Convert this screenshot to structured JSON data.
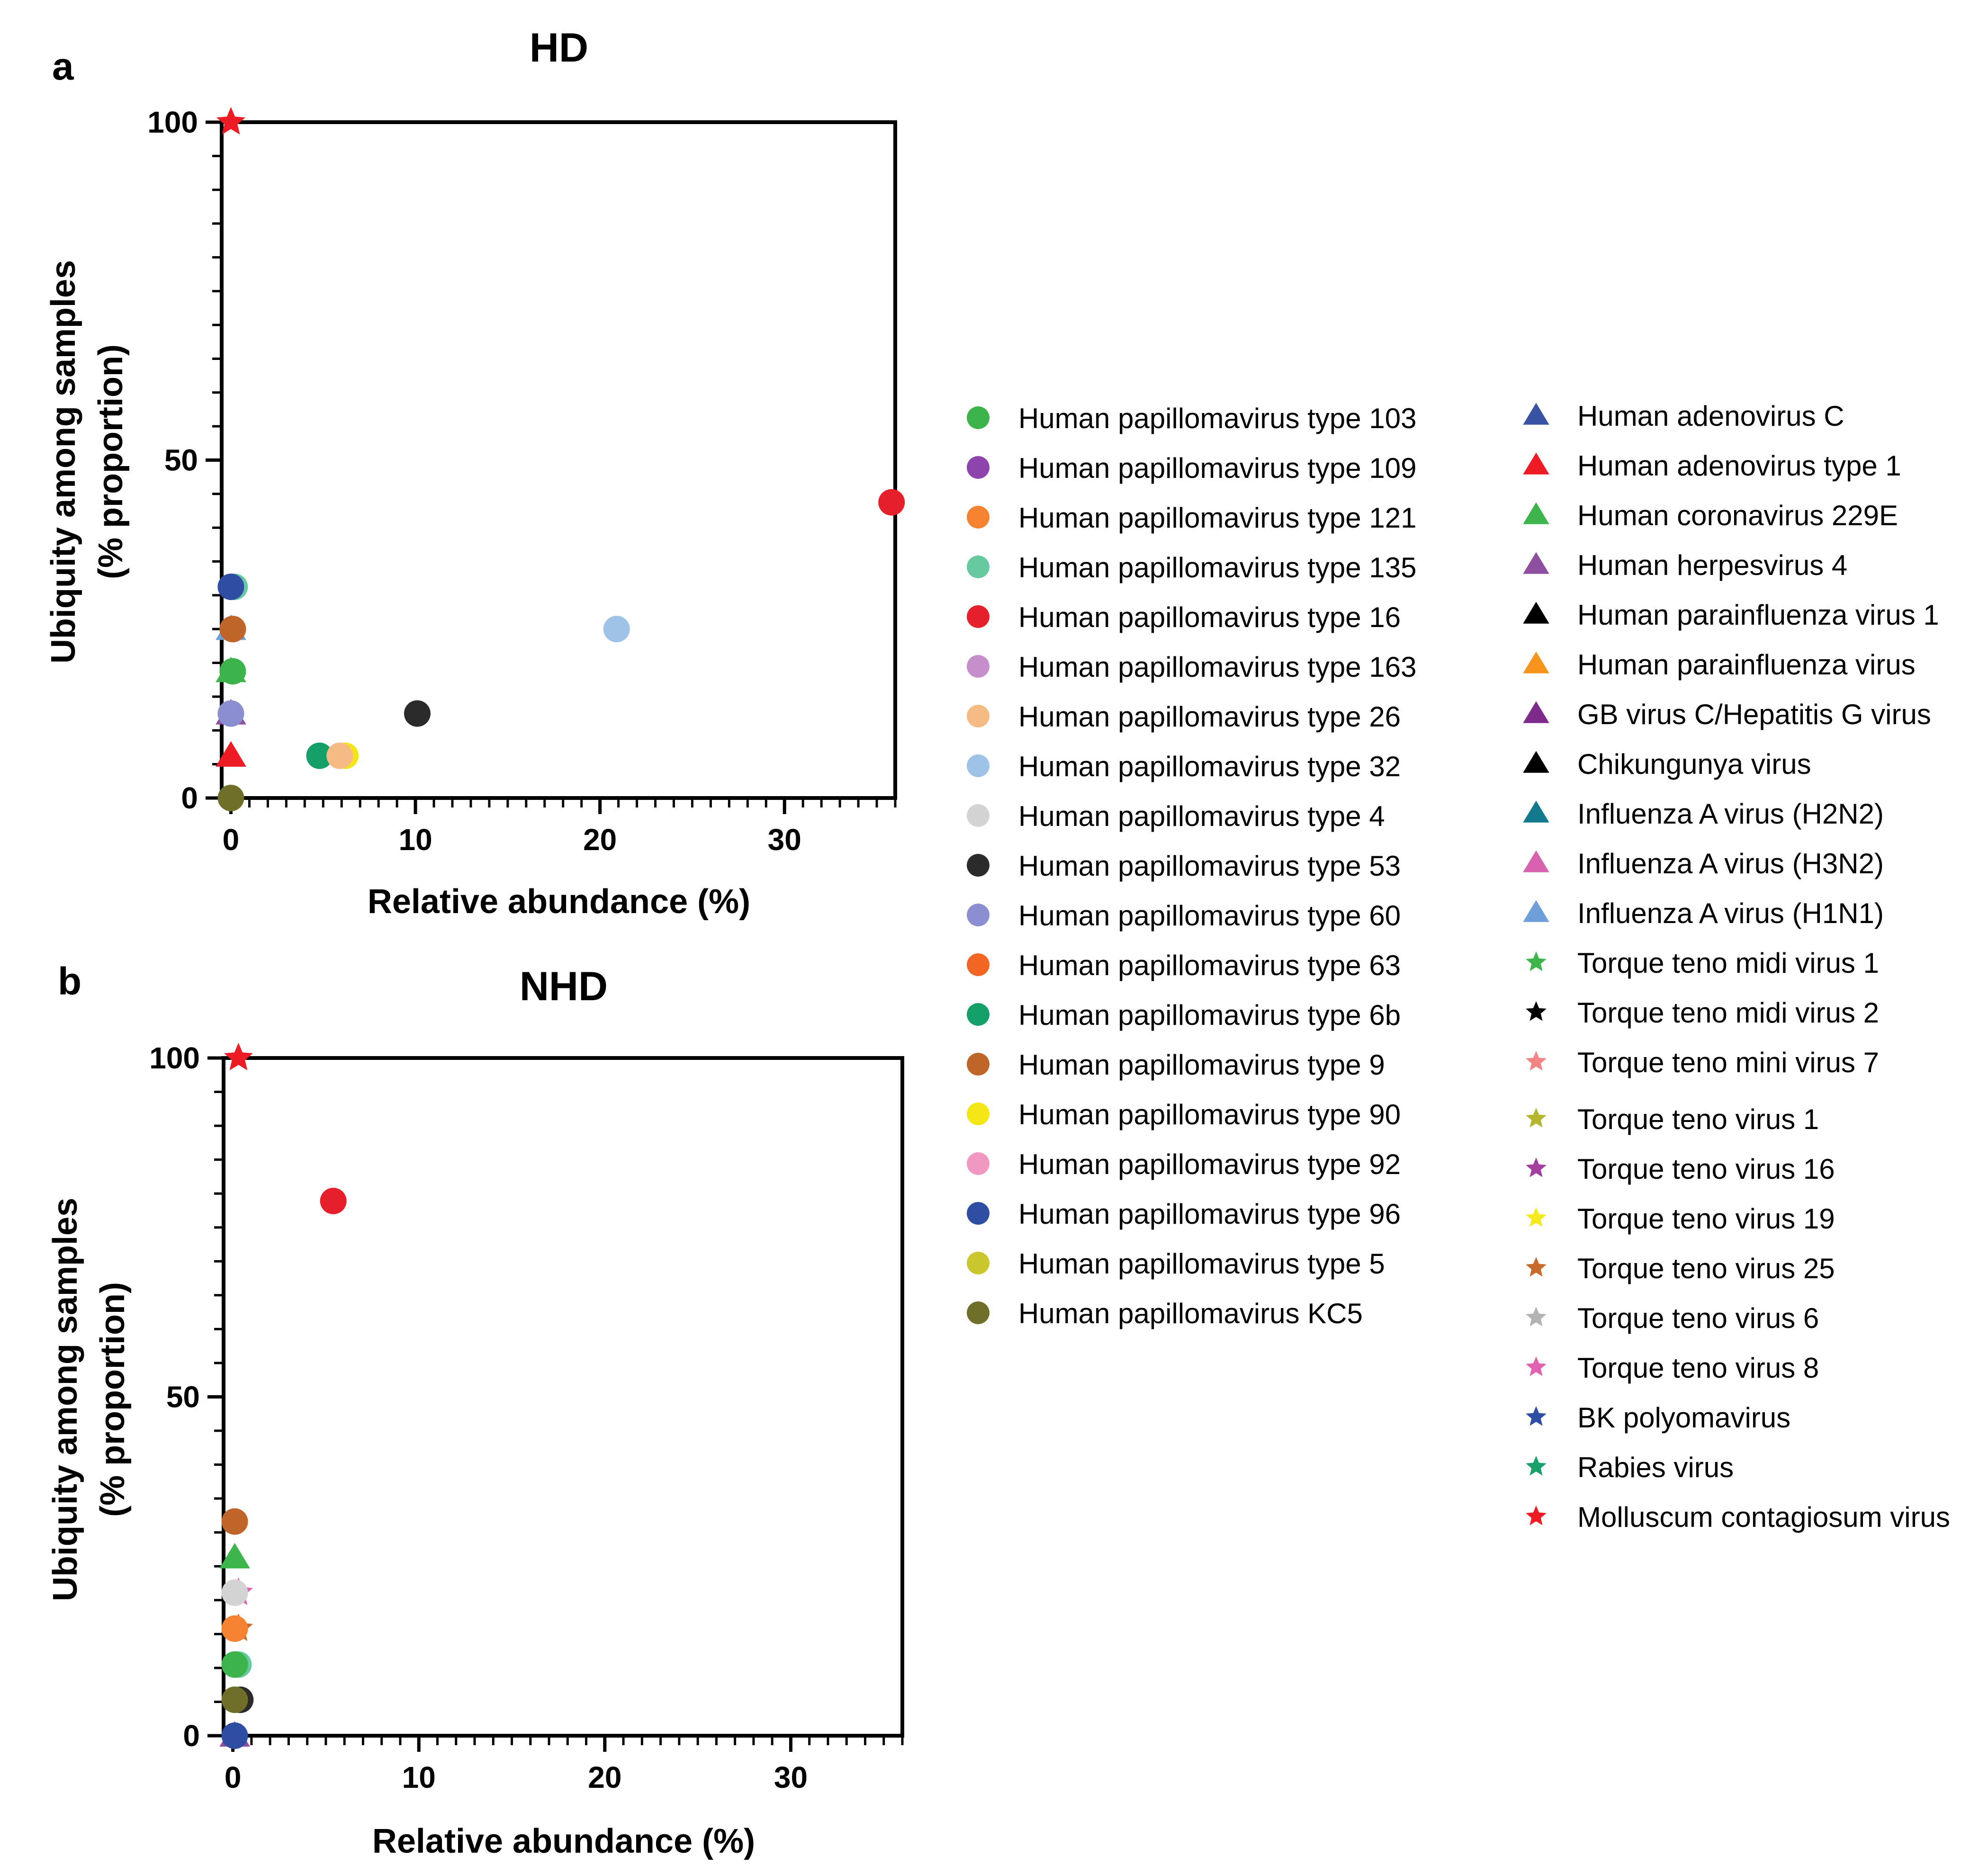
{
  "chart_data": [
    {
      "type": "scatter",
      "panel": "a",
      "title": "HD",
      "xlabel": "Relative abundance (%)",
      "ylabel": [
        "Ubiquity among samples",
        "(% proportion)"
      ],
      "xlim": [
        -0.5,
        36
      ],
      "ylim": [
        0,
        100
      ],
      "xticks": [
        0,
        10,
        20,
        30
      ],
      "yticks": [
        0,
        50,
        100
      ],
      "points": [
        {
          "series": "Human adenovirus C",
          "x": 0.0,
          "y": 6.25
        },
        {
          "series": "Influenza A virus (H1N1)",
          "x": 0.0,
          "y": 25
        },
        {
          "series": "Human coronavirus 229E",
          "x": 0.0,
          "y": 18.75
        },
        {
          "series": "Human herpesvirus 4",
          "x": 0.0,
          "y": 12.5
        },
        {
          "series": "Human papillomavirus type 163",
          "x": 0.1,
          "y": 25
        },
        {
          "series": "Human papillomavirus type 135",
          "x": 0.2,
          "y": 31.25
        },
        {
          "series": "Human papillomavirus type 96",
          "x": 0.0,
          "y": 31.25
        },
        {
          "series": "Human papillomavirus type 9",
          "x": 0.1,
          "y": 25
        },
        {
          "series": "Human papillomavirus type 103",
          "x": 0.1,
          "y": 18.75
        },
        {
          "series": "Human papillomavirus type 60",
          "x": 0.0,
          "y": 12.5
        },
        {
          "series": "Human adenovirus type 1",
          "x": 0.0,
          "y": 6.25
        },
        {
          "series": "Human papillomavirus KC5",
          "x": 0.0,
          "y": 0
        },
        {
          "series": "Human papillomavirus type 6b",
          "x": 4.8,
          "y": 6.25
        },
        {
          "series": "Human papillomavirus type 90",
          "x": 6.2,
          "y": 6.25
        },
        {
          "series": "Human papillomavirus type 26",
          "x": 5.9,
          "y": 6.25
        },
        {
          "series": "Human papillomavirus type 53",
          "x": 10.1,
          "y": 12.5
        },
        {
          "series": "Human papillomavirus type 32",
          "x": 20.9,
          "y": 25
        },
        {
          "series": "Human papillomavirus type 16",
          "x": 35.8,
          "y": 43.75
        },
        {
          "series": "Molluscum contagiosum virus",
          "x": 0.0,
          "y": 100
        }
      ]
    },
    {
      "type": "scatter",
      "panel": "b",
      "title": "NHD",
      "xlabel": "Relative abundance (%)",
      "ylabel": [
        "Ubiquity among samples",
        "(% proportion)"
      ],
      "xlim": [
        -0.5,
        36
      ],
      "ylim": [
        0,
        100
      ],
      "xticks": [
        0,
        10,
        20,
        30
      ],
      "yticks": [
        0,
        50,
        100
      ],
      "points": [
        {
          "series": "Molluscum contagiosum virus",
          "x": 0.3,
          "y": 100
        },
        {
          "series": "Human papillomavirus type 16",
          "x": 5.4,
          "y": 78.9
        },
        {
          "series": "Human papillomavirus type 9",
          "x": 0.1,
          "y": 31.6
        },
        {
          "series": "Human coronavirus 229E",
          "x": 0.1,
          "y": 26.3
        },
        {
          "series": "Torque teno virus 8",
          "x": 0.3,
          "y": 21.1
        },
        {
          "series": "Human papillomavirus type 4",
          "x": 0.1,
          "y": 21.1
        },
        {
          "series": "Torque teno virus 25",
          "x": 0.3,
          "y": 15.8
        },
        {
          "series": "Human papillomavirus type 121",
          "x": 0.1,
          "y": 15.8
        },
        {
          "series": "Human papillomavirus type 135",
          "x": 0.3,
          "y": 10.5
        },
        {
          "series": "Human papillomavirus type 103",
          "x": 0.1,
          "y": 10.5
        },
        {
          "series": "Human papillomavirus type 53",
          "x": 0.4,
          "y": 5.3
        },
        {
          "series": "Human papillomavirus KC5",
          "x": 0.1,
          "y": 5.3
        },
        {
          "series": "Human herpesvirus 4",
          "x": 0.1,
          "y": 0
        },
        {
          "series": "Human papillomavirus type 96",
          "x": 0.1,
          "y": 0
        }
      ]
    }
  ],
  "legend": {
    "col1": [
      {
        "label": "Human papillomavirus type 103",
        "marker": "circle",
        "color": "#3cb44b"
      },
      {
        "label": "Human papillomavirus type 109",
        "marker": "circle",
        "color": "#8e44ad"
      },
      {
        "label": "Human papillomavirus type 121",
        "marker": "circle",
        "color": "#f58231"
      },
      {
        "label": "Human papillomavirus type 135",
        "marker": "circle",
        "color": "#66c9a0"
      },
      {
        "label": "Human papillomavirus type 16",
        "marker": "circle",
        "color": "#e6202a"
      },
      {
        "label": "Human papillomavirus type 163",
        "marker": "circle",
        "color": "#c58dc9"
      },
      {
        "label": "Human papillomavirus type 26",
        "marker": "circle",
        "color": "#f6ba84"
      },
      {
        "label": "Human papillomavirus type 32",
        "marker": "circle",
        "color": "#9ec3e6"
      },
      {
        "label": "Human papillomavirus type 4",
        "marker": "circle",
        "color": "#d3d3d3"
      },
      {
        "label": "Human papillomavirus type 53",
        "marker": "circle",
        "color": "#2b2b2b"
      },
      {
        "label": "Human papillomavirus type 60",
        "marker": "circle",
        "color": "#8a8fd1"
      },
      {
        "label": "Human papillomavirus type 63",
        "marker": "circle",
        "color": "#f26522"
      },
      {
        "label": "Human papillomavirus type 6b",
        "marker": "circle",
        "color": "#14a068"
      },
      {
        "label": "Human papillomavirus type 9",
        "marker": "circle",
        "color": "#c0652a"
      },
      {
        "label": "Human papillomavirus type 90",
        "marker": "circle",
        "color": "#f4e616"
      },
      {
        "label": "Human papillomavirus type 92",
        "marker": "circle",
        "color": "#f198c2"
      },
      {
        "label": "Human papillomavirus type 96",
        "marker": "circle",
        "color": "#2e4ea3"
      },
      {
        "label": "Human papillomavirus type 5",
        "marker": "circle",
        "color": "#c9c62e"
      },
      {
        "label": "Human papillomavirus KC5",
        "marker": "circle",
        "color": "#6f6f2a"
      }
    ],
    "col2": [
      {
        "label": "Human adenovirus C",
        "marker": "triangle",
        "color": "#3953a4"
      },
      {
        "label": "Human adenovirus type 1",
        "marker": "triangle",
        "color": "#ed1c24"
      },
      {
        "label": "Human coronavirus 229E",
        "marker": "triangle",
        "color": "#3db54a"
      },
      {
        "label": "Human herpesvirus 4",
        "marker": "triangle",
        "color": "#8e4fa0"
      },
      {
        "label": "Human parainfluenza virus 1",
        "marker": "triangle",
        "color": "#000000"
      },
      {
        "label": "Human parainfluenza virus",
        "marker": "triangle",
        "color": "#f7941d"
      },
      {
        "label": "GB virus C/Hepatitis G virus",
        "marker": "triangle",
        "color": "#7d2a8c"
      },
      {
        "label": "Chikungunya virus",
        "marker": "triangle",
        "color": "#000000"
      },
      {
        "label": "Influenza A virus (H2N2)",
        "marker": "triangle",
        "color": "#127a8c"
      },
      {
        "label": "Influenza A virus (H3N2)",
        "marker": "triangle",
        "color": "#d662b0"
      },
      {
        "label": "Influenza A virus (H1N1)",
        "marker": "triangle",
        "color": "#6f9fd8"
      },
      {
        "label": "Torque teno midi virus 1",
        "marker": "star",
        "color": "#3db54a"
      },
      {
        "label": "Torque teno midi virus 2",
        "marker": "star",
        "color": "#000000"
      },
      {
        "label": "Torque teno mini virus 7",
        "marker": "star",
        "color": "#f28484"
      },
      {
        "label": "Torque teno virus 1",
        "marker": "star",
        "color": "#b5b52e"
      },
      {
        "label": "Torque teno virus 16",
        "marker": "star",
        "color": "#a43fa0"
      },
      {
        "label": "Torque teno virus 19",
        "marker": "star",
        "color": "#f6ea1d"
      },
      {
        "label": "Torque teno virus 25",
        "marker": "star",
        "color": "#c86a2c"
      },
      {
        "label": "Torque teno virus 6",
        "marker": "star",
        "color": "#b3b3b3"
      },
      {
        "label": "Torque teno virus 8",
        "marker": "star",
        "color": "#e062b0"
      },
      {
        "label": "BK polyomavirus",
        "marker": "star",
        "color": "#2e4ea3"
      },
      {
        "label": "Rabies virus",
        "marker": "star",
        "color": "#1aa06a"
      },
      {
        "label": "Molluscum contagiosum virus",
        "marker": "star",
        "color": "#ed1c24"
      }
    ]
  }
}
